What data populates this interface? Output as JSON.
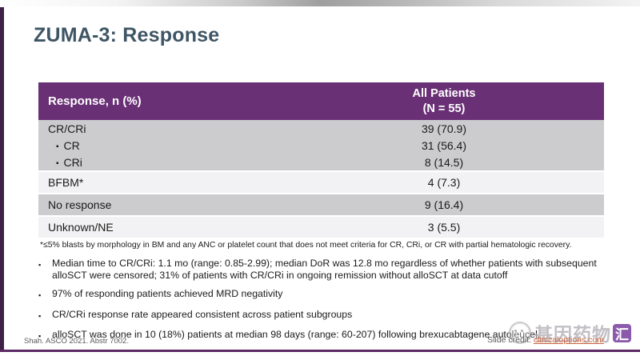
{
  "slide": {
    "title": "ZUMA-3: Response",
    "reference": "Shah. ASCO 2021. Abstr 7002.",
    "credit_label": "Slide credit: ",
    "credit_link": "clinicaloptions.com"
  },
  "table": {
    "header": {
      "col1": "Response, n (%)",
      "col2_line1": "All Patients",
      "col2_line2": "(N = 55)"
    },
    "rows": [
      {
        "label": "CR/CRi",
        "value": "39 (70.9)",
        "indent": false
      },
      {
        "label": "CR",
        "value": "31 (56.4)",
        "indent": true
      },
      {
        "label": "CRi",
        "value": "8 (14.5)",
        "indent": true
      },
      {
        "label": "BFBM*",
        "value": "4 (7.3)",
        "indent": false
      },
      {
        "label": "No response",
        "value": "9 (16.4)",
        "indent": false
      },
      {
        "label": "Unknown/NE",
        "value": "3 (5.5)",
        "indent": false
      }
    ]
  },
  "footnote": "*≤5% blasts by morphology in BM and any ANC or platelet count that does not meet criteria for CR, CRi, or CR with partial hematologic recovery.",
  "bullets": [
    "Median time to CR/CRi: 1.1 mo (range: 0.85-2.99); median DoR was 12.8 mo regardless of whether patients with subsequent alloSCT were censored; 31% of patients with CR/CRi in ongoing remission without alloSCT at data cutoff",
    "97% of responding patients achieved MRD negativity",
    "CR/CRi response rate appeared consistent across patient subgroups",
    "alloSCT was done in 10 (18%) patients at median 98 days (range: 60-207) following brexucabtagene autoleucel"
  ],
  "watermark": {
    "text": "基因药物",
    "badge": "汇"
  },
  "colors": {
    "accent_purple": "#6a3076",
    "bottom_line_purple": "#5d2a66",
    "left_bar_purple": "#3f2147",
    "row_gray": "#cccbce",
    "row_light": "#f2f1f3",
    "title_color": "#3e5565",
    "link_orange": "#c9613a"
  }
}
